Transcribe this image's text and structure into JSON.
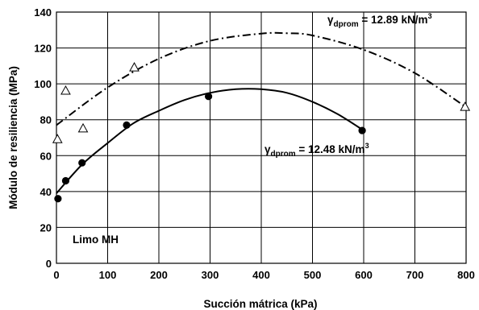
{
  "chart_data": {
    "type": "scatter",
    "xlabel": "Succión mátrica (kPa)",
    "ylabel": "Módulo de resiliencia (MPa)",
    "xlim": [
      0,
      800
    ],
    "ylim": [
      0,
      140
    ],
    "x_ticks": [
      "0",
      "100",
      "200",
      "300",
      "400",
      "500",
      "600",
      "700",
      "800"
    ],
    "y_ticks": [
      "0",
      "20",
      "40",
      "60",
      "80",
      "100",
      "120",
      "140"
    ],
    "grid": true,
    "legend": "none",
    "series": [
      {
        "marker": "open-triangle",
        "x": [
          2,
          18,
          52,
          152,
          798
        ],
        "y": [
          69,
          96,
          75,
          109,
          87
        ]
      },
      {
        "marker": "filled-circle",
        "x": [
          3,
          18,
          50,
          137,
          297,
          597
        ],
        "y": [
          36,
          46,
          56,
          77,
          93,
          74
        ]
      }
    ],
    "fit_curves": [
      {
        "style": "dash-dot",
        "x": [
          0,
          100,
          200,
          300,
          400,
          450,
          500,
          600,
          700,
          800
        ],
        "y": [
          77,
          98,
          114,
          124,
          128,
          128.2,
          127,
          119,
          106,
          87
        ]
      },
      {
        "style": "solid",
        "x": [
          0,
          50,
          100,
          150,
          200,
          250,
          300,
          350,
          400,
          450,
          500,
          550,
          600
        ],
        "y": [
          39,
          55,
          67,
          78,
          85,
          91,
          95,
          97,
          97,
          95,
          90,
          83,
          74
        ]
      }
    ],
    "annotations": {
      "upper_gamma": "γ",
      "upper_sub": "dprom",
      "upper_value": " = 12.89 kN/m",
      "upper_sup": "3",
      "lower_gamma": "γ",
      "lower_sub": "dprom",
      "lower_value": " = 12.48 kN/m",
      "lower_sup": "3",
      "soil": "Limo MH"
    }
  }
}
